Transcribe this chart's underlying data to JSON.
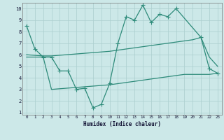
{
  "line1_x": [
    0,
    1,
    2,
    3,
    4,
    5,
    6,
    7,
    8,
    9,
    10,
    11,
    12,
    13,
    14,
    15,
    16,
    17,
    18,
    21,
    22,
    23
  ],
  "line1_y": [
    8.5,
    6.5,
    5.8,
    5.8,
    4.6,
    4.6,
    3.0,
    3.1,
    1.4,
    1.7,
    3.5,
    7.0,
    9.3,
    9.0,
    10.3,
    8.8,
    9.5,
    9.3,
    10.0,
    7.5,
    4.8,
    4.4
  ],
  "line2_x": [
    0,
    2,
    3,
    10,
    11,
    12,
    13,
    14,
    15,
    16,
    17,
    18,
    19,
    20,
    21,
    22,
    23
  ],
  "line2_y": [
    6.0,
    5.9,
    5.9,
    6.3,
    6.4,
    6.5,
    6.6,
    6.7,
    6.8,
    6.9,
    7.0,
    7.1,
    7.2,
    7.3,
    7.5,
    5.8,
    5.0
  ],
  "line3_x": [
    0,
    2,
    3,
    10,
    11,
    12,
    13,
    14,
    15,
    16,
    17,
    18,
    19,
    20,
    21,
    22,
    23
  ],
  "line3_y": [
    5.8,
    5.8,
    3.0,
    3.4,
    3.5,
    3.6,
    3.7,
    3.8,
    3.9,
    4.0,
    4.1,
    4.2,
    4.3,
    4.3,
    4.3,
    4.3,
    4.4
  ],
  "line_color": "#2e8b7a",
  "bg_color": "#cce8e8",
  "grid_color": "#aacece",
  "xlabel": "Humidex (Indice chaleur)",
  "ylim": [
    0.8,
    10.5
  ],
  "xlim": [
    -0.5,
    23.5
  ],
  "yticks": [
    1,
    2,
    3,
    4,
    5,
    6,
    7,
    8,
    9,
    10
  ],
  "xticks": [
    0,
    1,
    2,
    3,
    4,
    5,
    6,
    7,
    8,
    9,
    10,
    11,
    12,
    13,
    14,
    15,
    16,
    17,
    18,
    19,
    20,
    21,
    22,
    23
  ],
  "markersize": 3,
  "linewidth": 0.9
}
